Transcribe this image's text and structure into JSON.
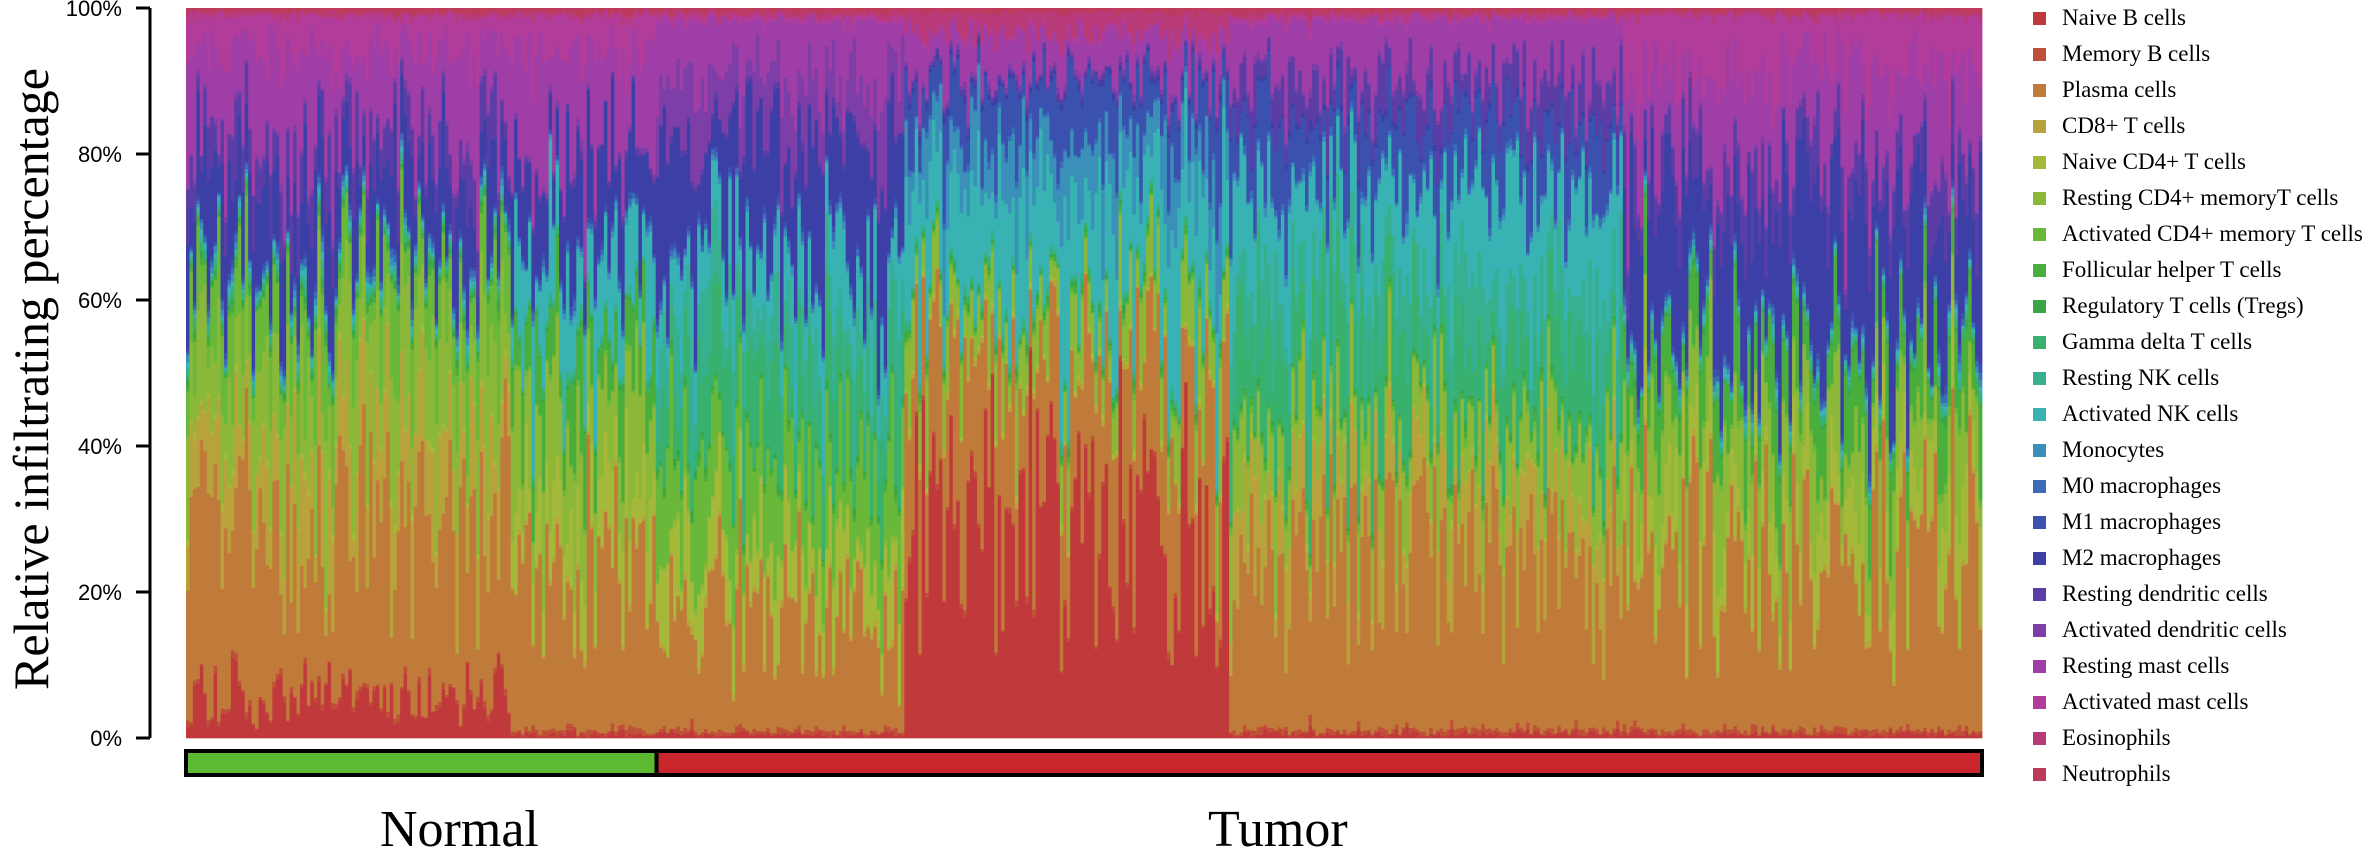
{
  "chart_data": {
    "type": "stacked-bar",
    "ylabel": "Relative infiltrating percentage",
    "ylim": [
      0,
      100
    ],
    "yticks": [
      "0%",
      "20%",
      "40%",
      "60%",
      "80%",
      "100%"
    ],
    "groups": [
      {
        "name": "Normal",
        "color": "#5db832",
        "fraction": 0.262
      },
      {
        "name": "Tumor",
        "color": "#c8262c",
        "fraction": 0.738
      }
    ],
    "legend_position": "right",
    "series": [
      {
        "name": "Naive B cells",
        "color": "#c0393b"
      },
      {
        "name": "Memory B cells",
        "color": "#c04f38"
      },
      {
        "name": "Plasma cells",
        "color": "#c07a3a"
      },
      {
        "name": "CD8+ T cells",
        "color": "#b8a23c"
      },
      {
        "name": "Naive CD4+ T cells",
        "color": "#a6b83a"
      },
      {
        "name": "Resting  CD4+ memoryT cells",
        "color": "#8cb83a"
      },
      {
        "name": "Activated CD4+ memory T cells",
        "color": "#6ab83a"
      },
      {
        "name": "Follicular helper T cells",
        "color": "#4aae3c"
      },
      {
        "name": "Regulatory T cells (Tregs)",
        "color": "#3aa648"
      },
      {
        "name": "Gamma delta T cells",
        "color": "#38b06e"
      },
      {
        "name": "Resting NK cells",
        "color": "#36b08e"
      },
      {
        "name": "Activated NK cells",
        "color": "#38b2b2"
      },
      {
        "name": "Monocytes",
        "color": "#3a90b8"
      },
      {
        "name": "M0 macrophages",
        "color": "#3a6cb8"
      },
      {
        "name": "M1 macrophages",
        "color": "#3a52ae"
      },
      {
        "name": "M2 macrophages",
        "color": "#3c40a6"
      },
      {
        "name": "Resting dendritic cells",
        "color": "#5a3ea6"
      },
      {
        "name": "Activated dendritic cells",
        "color": "#7e3ea8"
      },
      {
        "name": "Resting mast cells",
        "color": "#9e3ea6"
      },
      {
        "name": "Activated mast cells",
        "color": "#b23c9a"
      },
      {
        "name": "Eosinophils",
        "color": "#b83a78"
      },
      {
        "name": "Neutrophils",
        "color": "#bc3a5a"
      }
    ]
  }
}
